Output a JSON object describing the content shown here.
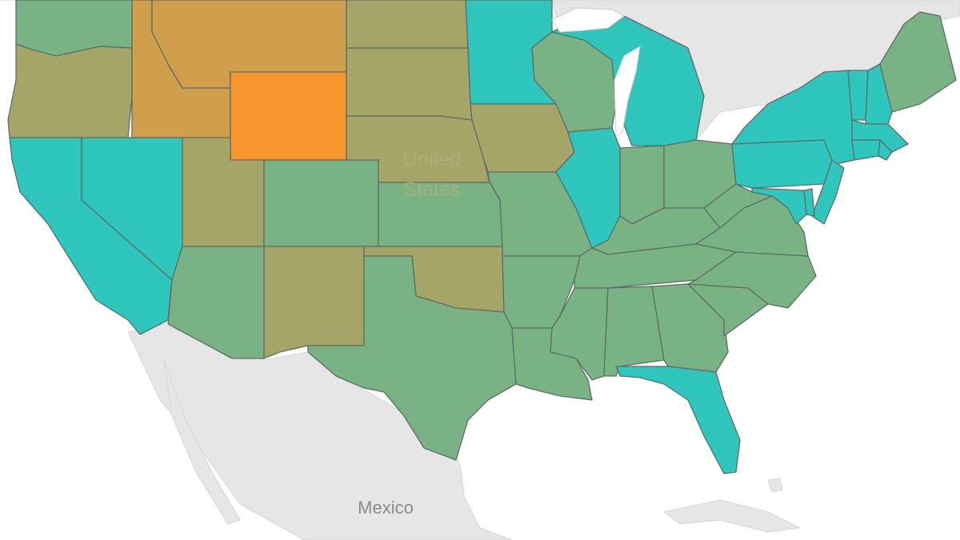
{
  "map": {
    "labels": {
      "country": "United States",
      "country_line1": "United",
      "country_line2": "States",
      "neighbor": "Mexico"
    },
    "colors": {
      "teal": "#2fc6bd",
      "green": "#7ab383",
      "olive": "#a6a568",
      "tan": "#cf9f4c",
      "orange": "#f7962d",
      "land": "#e6e6e6",
      "water": "#ffffff",
      "border": "#5f6b66",
      "label": "#8c8c8c",
      "country_label": "#b0ad7d"
    },
    "state_color_category": {
      "WA": "green",
      "OR": "olive",
      "CA": "teal",
      "NV": "teal",
      "ID": "tan",
      "MT": "tan",
      "WY": "orange",
      "UT": "olive",
      "AZ": "green",
      "NM": "olive",
      "CO": "green",
      "ND": "olive",
      "SD": "olive",
      "NE": "olive",
      "KS": "green",
      "OK": "olive",
      "TX": "green",
      "MN": "teal",
      "IA": "olive",
      "MO": "green",
      "AR": "green",
      "LA": "green",
      "WI": "green",
      "IL": "teal",
      "MI": "teal",
      "IN": "green",
      "OH": "green",
      "KY": "green",
      "TN": "green",
      "MS": "green",
      "AL": "green",
      "GA": "green",
      "FL": "teal",
      "SC": "green",
      "NC": "green",
      "VA": "green",
      "WV": "green",
      "PA": "teal",
      "NY": "teal",
      "VT": "teal",
      "NH": "teal",
      "ME": "green",
      "MA": "teal",
      "RI": "teal",
      "CT": "teal",
      "NJ": "teal",
      "DE": "teal",
      "MD": "teal"
    }
  }
}
